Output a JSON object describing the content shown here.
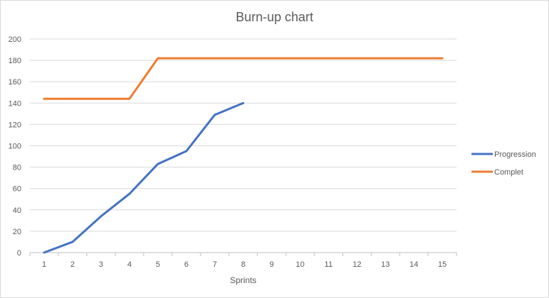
{
  "chart_data": {
    "type": "line",
    "title": "Burn-up chart",
    "xlabel": "Sprints",
    "ylabel": "",
    "x": [
      1,
      2,
      3,
      4,
      5,
      6,
      7,
      8,
      9,
      10,
      11,
      12,
      13,
      14,
      15
    ],
    "ylim": [
      0,
      200
    ],
    "yticks": [
      0,
      20,
      40,
      60,
      80,
      100,
      120,
      140,
      160,
      180,
      200
    ],
    "grid": true,
    "legend_position": "right",
    "series": [
      {
        "name": "Progression",
        "color": "#4472c4",
        "values": [
          0,
          10,
          34,
          55,
          83,
          95,
          129,
          140,
          null,
          null,
          null,
          null,
          null,
          null,
          null
        ]
      },
      {
        "name": "Complet",
        "color": "#ed7d31",
        "values": [
          144,
          144,
          144,
          144,
          182,
          182,
          182,
          182,
          182,
          182,
          182,
          182,
          182,
          182,
          182
        ]
      }
    ]
  }
}
